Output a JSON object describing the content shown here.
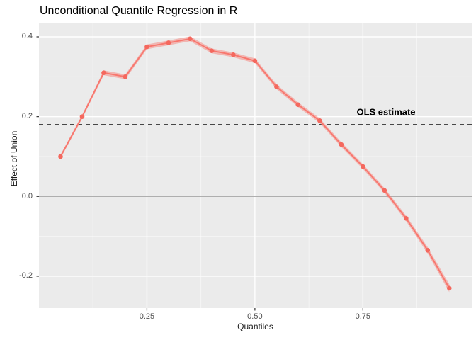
{
  "chart": {
    "title": "Unconditional Quantile Regression in R",
    "xlabel": "Quantiles",
    "ylabel": "Effect of Union",
    "annotation": "OLS estimate",
    "colors": {
      "panel_bg": "#EBEBEB",
      "grid_major": "#FFFFFF",
      "grid_minor": "rgba(255,255,255,0.55)",
      "line": "#F8766D",
      "point": "#F4685E",
      "ribbon": "rgba(248,118,109,0.45)",
      "zero_line": "#A3A3A3",
      "ols_line": "#111111",
      "tick_mark": "#333333",
      "tick_label": "#4D4D4D"
    }
  },
  "chart_data": {
    "type": "line",
    "title": "Unconditional Quantile Regression in R",
    "xlabel": "Quantiles",
    "ylabel": "Effect of Union",
    "x": [
      0.05,
      0.1,
      0.15,
      0.2,
      0.25,
      0.3,
      0.35,
      0.4,
      0.45,
      0.5,
      0.55,
      0.6,
      0.65,
      0.7,
      0.75,
      0.8,
      0.85,
      0.9,
      0.95
    ],
    "values": [
      0.1,
      0.2,
      0.31,
      0.3,
      0.375,
      0.385,
      0.395,
      0.365,
      0.355,
      0.34,
      0.275,
      0.23,
      0.19,
      0.13,
      0.075,
      0.015,
      -0.055,
      -0.135,
      -0.23
    ],
    "se": [
      0.005,
      0.005,
      0.006,
      0.006,
      0.006,
      0.006,
      0.006,
      0.006,
      0.006,
      0.006,
      0.006,
      0.006,
      0.006,
      0.006,
      0.006,
      0.006,
      0.007,
      0.008,
      0.01
    ],
    "ols_estimate": 0.18,
    "x_ticks": {
      "values": [
        0.25,
        0.5,
        0.75
      ],
      "labels": [
        "0.25",
        "0.50",
        "0.75"
      ]
    },
    "y_ticks": {
      "values": [
        0.4,
        0.2,
        0.0,
        -0.2
      ],
      "labels": [
        "0.4",
        "0.2",
        "0.0",
        "-0.2"
      ]
    },
    "x_minor": [
      0.125,
      0.375,
      0.625,
      0.875
    ],
    "y_minor": [
      0.3,
      0.1,
      -0.1
    ],
    "xlim": [
      0.0,
      1.002
    ],
    "ylim": [
      -0.28,
      0.4355
    ],
    "grid": true,
    "legend_position": "none",
    "zero_reference_line": 0.0
  }
}
